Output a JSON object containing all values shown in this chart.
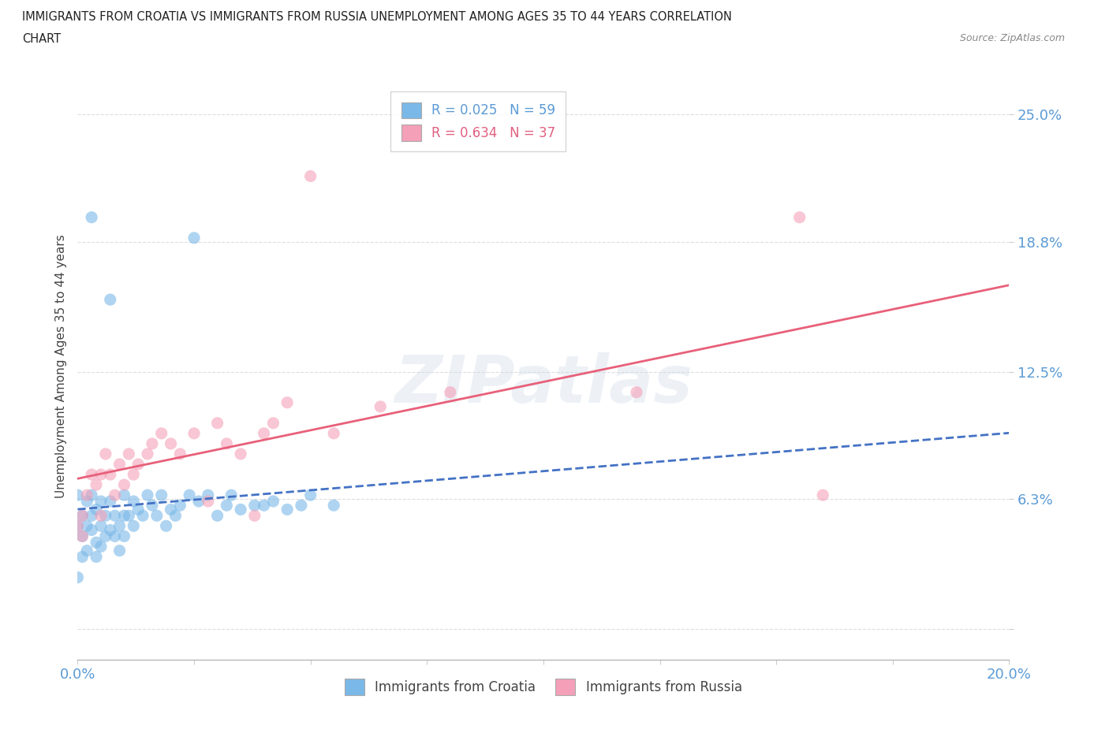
{
  "title_line1": "IMMIGRANTS FROM CROATIA VS IMMIGRANTS FROM RUSSIA UNEMPLOYMENT AMONG AGES 35 TO 44 YEARS CORRELATION",
  "title_line2": "CHART",
  "source": "Source: ZipAtlas.com",
  "ylabel": "Unemployment Among Ages 35 to 44 years",
  "xmin": 0.0,
  "xmax": 0.2,
  "ymin": -0.015,
  "ymax": 0.27,
  "yticks": [
    0.0,
    0.063,
    0.125,
    0.188,
    0.25
  ],
  "ytick_labels": [
    "",
    "6.3%",
    "12.5%",
    "18.8%",
    "25.0%"
  ],
  "xticks": [
    0.0,
    0.025,
    0.05,
    0.075,
    0.1,
    0.125,
    0.15,
    0.175,
    0.2
  ],
  "xtick_labels": [
    "0.0%",
    "",
    "",
    "",
    "",
    "",
    "",
    "",
    "20.0%"
  ],
  "croatia_color": "#7ab8e8",
  "russia_color": "#f4a0b8",
  "croatia_line_color": "#4472c4",
  "russia_line_color": "#e8607a",
  "croatia_R": 0.025,
  "croatia_N": 59,
  "russia_R": 0.634,
  "russia_N": 37,
  "croatia_x": [
    0.0,
    0.0,
    0.0,
    0.001,
    0.001,
    0.001,
    0.002,
    0.002,
    0.002,
    0.003,
    0.003,
    0.003,
    0.004,
    0.004,
    0.004,
    0.005,
    0.005,
    0.005,
    0.006,
    0.006,
    0.007,
    0.007,
    0.008,
    0.008,
    0.009,
    0.009,
    0.01,
    0.01,
    0.01,
    0.011,
    0.012,
    0.012,
    0.013,
    0.014,
    0.015,
    0.016,
    0.017,
    0.018,
    0.019,
    0.02,
    0.021,
    0.022,
    0.024,
    0.025,
    0.026,
    0.028,
    0.03,
    0.032,
    0.033,
    0.035,
    0.038,
    0.04,
    0.042,
    0.045,
    0.048,
    0.05,
    0.055,
    0.003,
    0.007
  ],
  "croatia_y": [
    0.05,
    0.065,
    0.025,
    0.055,
    0.045,
    0.035,
    0.05,
    0.038,
    0.062,
    0.048,
    0.055,
    0.065,
    0.042,
    0.058,
    0.035,
    0.05,
    0.062,
    0.04,
    0.055,
    0.045,
    0.048,
    0.062,
    0.055,
    0.045,
    0.05,
    0.038,
    0.055,
    0.045,
    0.065,
    0.055,
    0.062,
    0.05,
    0.058,
    0.055,
    0.065,
    0.06,
    0.055,
    0.065,
    0.05,
    0.058,
    0.055,
    0.06,
    0.065,
    0.19,
    0.062,
    0.065,
    0.055,
    0.06,
    0.065,
    0.058,
    0.06,
    0.06,
    0.062,
    0.058,
    0.06,
    0.065,
    0.06,
    0.2,
    0.16
  ],
  "russia_x": [
    0.0,
    0.001,
    0.001,
    0.002,
    0.003,
    0.004,
    0.005,
    0.005,
    0.006,
    0.007,
    0.008,
    0.009,
    0.01,
    0.011,
    0.012,
    0.013,
    0.015,
    0.016,
    0.018,
    0.02,
    0.022,
    0.025,
    0.028,
    0.03,
    0.032,
    0.035,
    0.038,
    0.04,
    0.042,
    0.045,
    0.05,
    0.055,
    0.065,
    0.08,
    0.12,
    0.155,
    0.16
  ],
  "russia_y": [
    0.05,
    0.055,
    0.045,
    0.065,
    0.075,
    0.07,
    0.055,
    0.075,
    0.085,
    0.075,
    0.065,
    0.08,
    0.07,
    0.085,
    0.075,
    0.08,
    0.085,
    0.09,
    0.095,
    0.09,
    0.085,
    0.095,
    0.062,
    0.1,
    0.09,
    0.085,
    0.055,
    0.095,
    0.1,
    0.11,
    0.22,
    0.095,
    0.108,
    0.115,
    0.115,
    0.2,
    0.065
  ],
  "background_color": "#ffffff",
  "grid_color": "#dddddd",
  "tick_label_color": "#5b9bd5",
  "watermark_color": "#ccd8e8",
  "watermark_alpha": 0.35
}
